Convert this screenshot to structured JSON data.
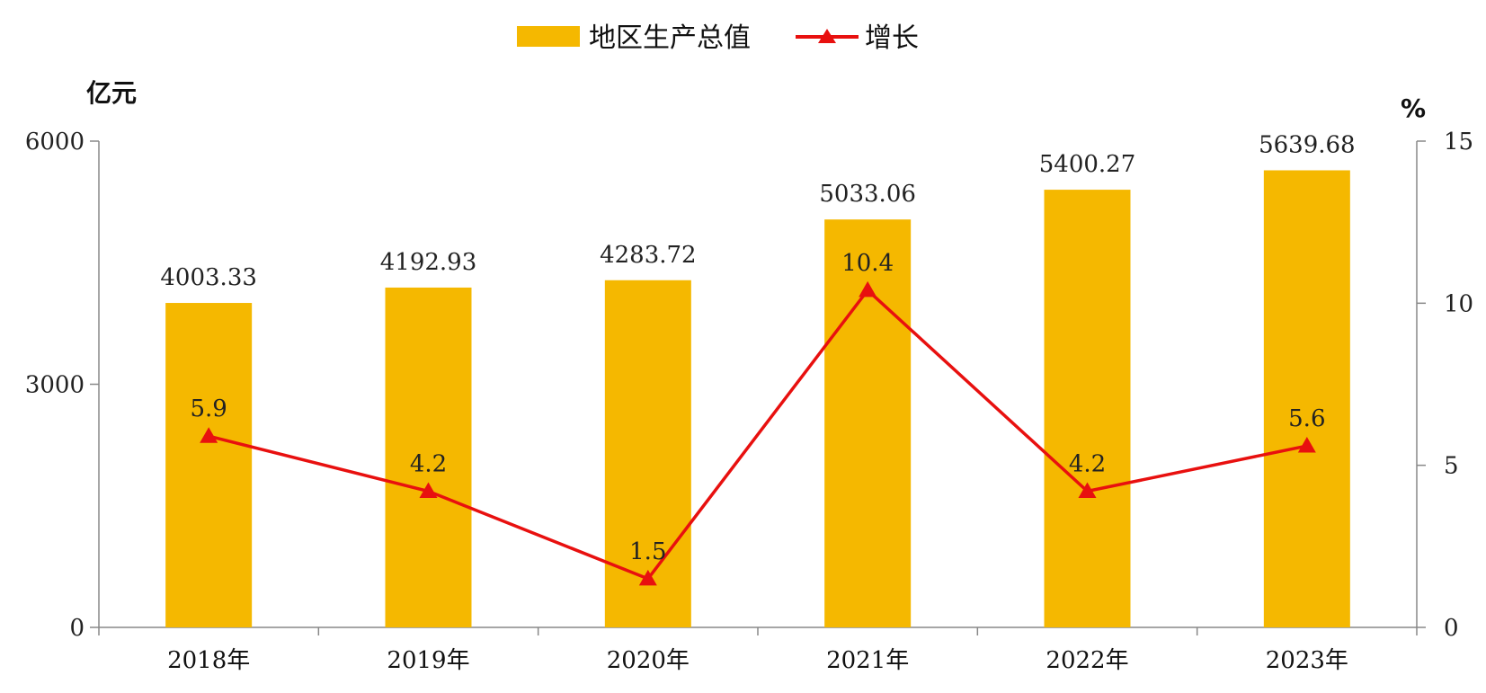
{
  "chart_data": {
    "type": "bar",
    "categories": [
      "2018年",
      "2019年",
      "2020年",
      "2021年",
      "2022年",
      "2023年"
    ],
    "series": [
      {
        "name": "地区生产总值",
        "type": "bar",
        "axis": "left",
        "values": [
          4003.33,
          4192.93,
          4283.72,
          5033.06,
          5400.27,
          5639.68
        ],
        "labels": [
          "4003.33",
          "4192.93",
          "4283.72",
          "5033.06",
          "5400.27",
          "5639.68"
        ],
        "color": "#F5B800"
      },
      {
        "name": "增长",
        "type": "line",
        "axis": "right",
        "marker": "triangle",
        "values": [
          5.9,
          4.2,
          1.5,
          10.4,
          4.2,
          5.6
        ],
        "labels": [
          "5.9",
          "4.2",
          "1.5",
          "10.4",
          "4.2",
          "5.6"
        ],
        "color": "#E8100F"
      }
    ],
    "ylabel_left": "亿元",
    "ylabel_right": "%",
    "ylim_left": [
      0,
      6000
    ],
    "ylim_right": [
      0,
      15
    ],
    "yticks_left": [
      "0",
      "3000",
      "6000"
    ],
    "yticks_right": [
      "0",
      "5",
      "10",
      "15"
    ],
    "grid": false,
    "legend_position": "top-center"
  }
}
